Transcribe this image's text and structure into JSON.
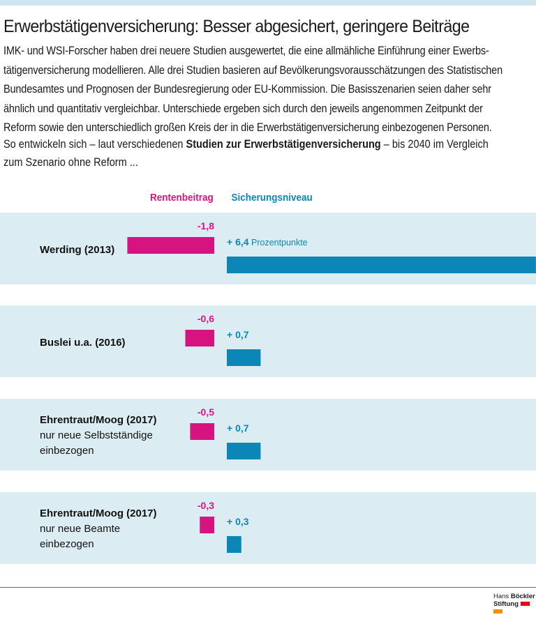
{
  "title": "Erwerbstätigenversicherung: Besser abgesichert, geringere Beiträge",
  "intro": "IMK- und WSI-Forscher haben drei neuere Studien ausgewertet, die eine allmähliche Einführung einer Ewerbs-tätigenversicherung modellieren. Alle drei Studien basieren auf Bevölkerungsvorausschätzungen des Statistischen Bundesamtes und Prognosen der Bundesregierung oder EU-Kommission. Die Basisszenarien seien daher sehr ähnlich und quantitativ vergleichbar. Unterschiede ergeben sich durch den jeweils angenommen Zeitpunkt der Reform sowie den unterschiedlich großen Kreis der in die Erwerbstätigenversicherung einbezogenen Personen.",
  "lead": {
    "pre": "So entwickeln sich – laut verschiedenen ",
    "bold": "Studien zur Erwerbstätigenversicherung",
    "post": " – bis 2040 im Vergleich zum Szenario ohne Reform ..."
  },
  "logo": {
    "line1a": "Hans ",
    "line1b": "Böckler",
    "line2": "Stiftung"
  },
  "chart_data": {
    "type": "bar",
    "unit": "Prozentpunkte",
    "colors": {
      "Rentenbeitrag": "#d6137f",
      "Sicherungsniveau": "#0b86b7",
      "panel": "#dbedf3"
    },
    "categories": [
      {
        "name": "Werding (2013)",
        "sub": ""
      },
      {
        "name": "Buslei u.a. (2016)",
        "sub": ""
      },
      {
        "name": "Ehrentraut/Moog (2017)",
        "sub": "nur neue Selbstständige einbezogen"
      },
      {
        "name": "Ehrentraut/Moog (2017)",
        "sub": "nur neue Beamte einbezogen"
      }
    ],
    "series": [
      {
        "name": "Rentenbeitrag",
        "values": [
          -1.8,
          -0.6,
          -0.5,
          -0.3
        ],
        "labels": [
          "-1,8",
          "-0,6",
          "-0,5",
          "-0,3"
        ]
      },
      {
        "name": "Sicherungsniveau",
        "values": [
          6.4,
          0.7,
          0.7,
          0.3
        ],
        "labels": [
          "+ 6,4",
          "+ 0,7",
          "+ 0,7",
          "+ 0,3"
        ]
      }
    ]
  }
}
